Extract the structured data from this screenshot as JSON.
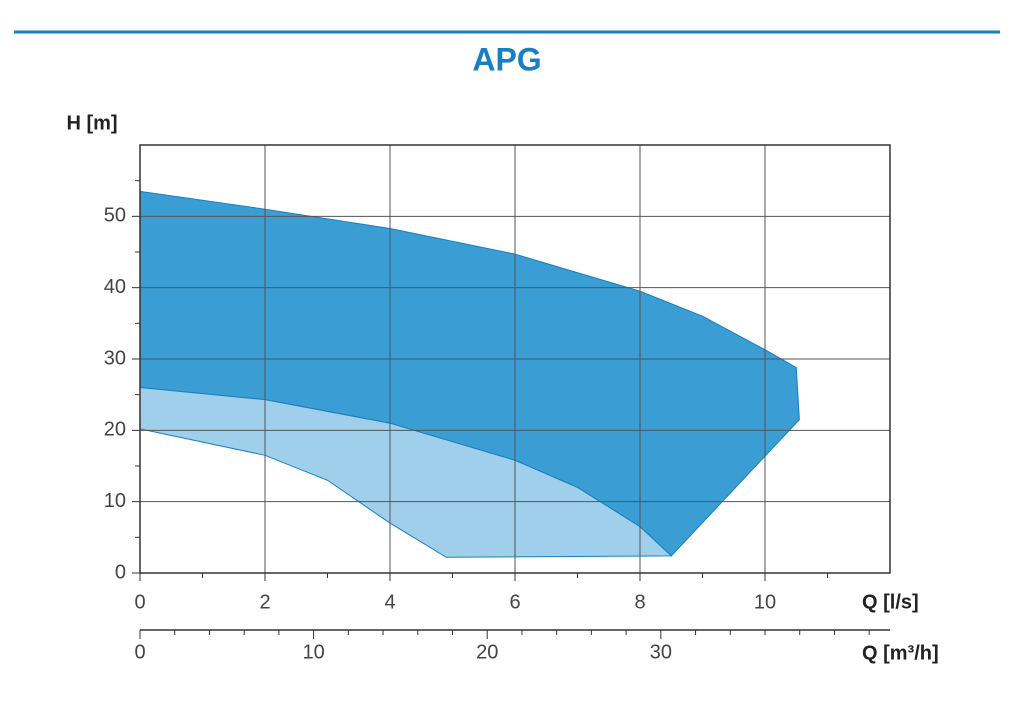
{
  "chart_data": {
    "type": "area",
    "title": "APG",
    "y_label": "H [m]",
    "x_label": "Q [l/s]",
    "x2_label": "Q [m³/h]",
    "xlim": [
      0,
      12
    ],
    "xticks": [
      0,
      2,
      4,
      6,
      8,
      10
    ],
    "xminorticks": [
      1,
      3,
      5,
      7,
      9,
      11
    ],
    "ylim": [
      0,
      60
    ],
    "yticks": [
      0,
      10,
      20,
      30,
      40,
      50
    ],
    "yminorticks": [
      5,
      15,
      25,
      35,
      45,
      55
    ],
    "x2lim": [
      0,
      43.2
    ],
    "x2ticks": [
      0,
      10,
      20,
      30
    ],
    "x2minorticks": [
      2,
      4,
      6,
      8,
      12,
      14,
      16,
      18,
      22,
      24,
      26,
      28,
      32,
      34,
      36,
      38,
      40,
      42
    ],
    "grid": true,
    "series": [
      {
        "color": "#3a9dd4",
        "x": [
          0,
          2,
          4,
          6,
          8,
          9,
          10,
          10.5,
          10.55,
          8.5,
          8,
          7,
          6,
          4,
          2,
          0
        ],
        "values": [
          53.5,
          51,
          48.3,
          44.7,
          39.5,
          36,
          31.3,
          28.8,
          21.5,
          2.4,
          6.5,
          12,
          15.8,
          21,
          24.3,
          26
        ]
      },
      {
        "color": "#9fcfea",
        "x": [
          0,
          2,
          4,
          6,
          7,
          8,
          8.5,
          4.9,
          4,
          3,
          2,
          0
        ],
        "values": [
          26,
          24.3,
          21,
          15.8,
          12,
          6.5,
          2.4,
          2.2,
          7,
          13,
          16.5,
          20.2
        ]
      }
    ]
  }
}
